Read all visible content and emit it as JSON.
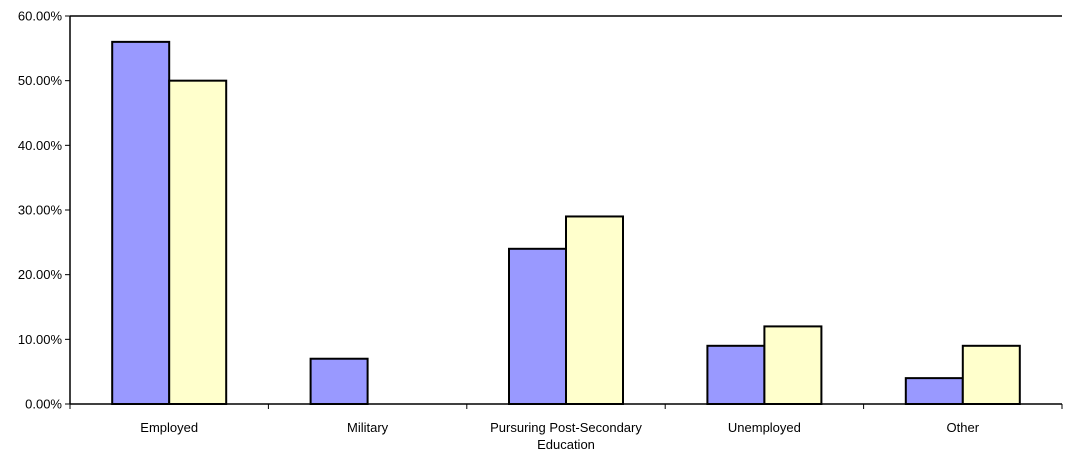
{
  "chart_data": {
    "type": "bar",
    "categories": [
      "Employed",
      "Military",
      "Pursuring Post-Secondary Education",
      "Unemployed",
      "Other"
    ],
    "category_label_lines": [
      [
        "Employed"
      ],
      [
        "Military"
      ],
      [
        "Pursuring Post-Secondary",
        "Education"
      ],
      [
        "Unemployed"
      ],
      [
        "Other"
      ]
    ],
    "series": [
      {
        "values": [
          56,
          7,
          24,
          9,
          4
        ],
        "color": "#9999ff"
      },
      {
        "values": [
          50,
          0,
          29,
          12,
          9
        ],
        "color": "#ffffcc"
      }
    ],
    "ylim": [
      0,
      60
    ],
    "yticks": [
      0,
      10,
      20,
      30,
      40,
      50,
      60
    ],
    "ytick_labels": [
      "0.00%",
      "10.00%",
      "20.00%",
      "30.00%",
      "40.00%",
      "50.00%",
      "60.00%"
    ],
    "title": "",
    "xlabel": "",
    "ylabel": "",
    "legend": "none",
    "grid": false
  }
}
